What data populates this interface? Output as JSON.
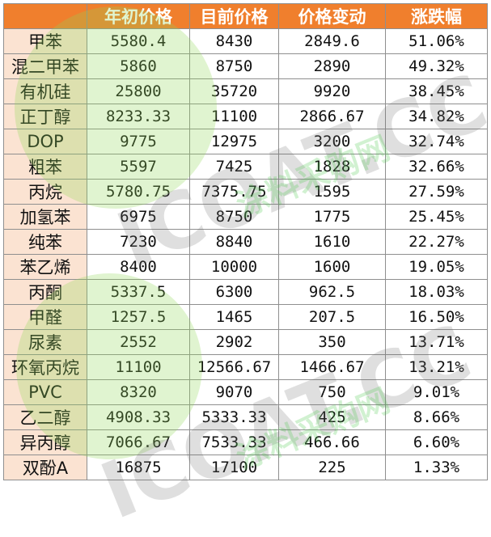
{
  "table": {
    "headers": [
      "",
      "年初价格",
      "目前价格",
      "价格变动",
      "涨跌幅"
    ],
    "rows": [
      [
        "甲苯",
        "5580.4",
        "8430",
        "2849.6",
        "51.06%"
      ],
      [
        "混二甲苯",
        "5860",
        "8750",
        "2890",
        "49.32%"
      ],
      [
        "有机硅",
        "25800",
        "35720",
        "9920",
        "38.45%"
      ],
      [
        "正丁醇",
        "8233.33",
        "11100",
        "2866.67",
        "34.82%"
      ],
      [
        "DOP",
        "9775",
        "12975",
        "3200",
        "32.74%"
      ],
      [
        "粗苯",
        "5597",
        "7425",
        "1828",
        "32.66%"
      ],
      [
        "丙烷",
        "5780.75",
        "7375.75",
        "1595",
        "27.59%"
      ],
      [
        "加氢苯",
        "6975",
        "8750",
        "1775",
        "25.45%"
      ],
      [
        "纯苯",
        "7230",
        "8840",
        "1610",
        "22.27%"
      ],
      [
        "苯乙烯",
        "8400",
        "10000",
        "1600",
        "19.05%"
      ],
      [
        "丙酮",
        "5337.5",
        "6300",
        "962.5",
        "18.03%"
      ],
      [
        "甲醛",
        "1257.5",
        "1465",
        "207.5",
        "16.50%"
      ],
      [
        "尿素",
        "2552",
        "2902",
        "350",
        "13.71%"
      ],
      [
        "环氧丙烷",
        "11100",
        "12566.67",
        "1466.67",
        "13.21%"
      ],
      [
        "PVC",
        "8320",
        "9070",
        "750",
        "9.01%"
      ],
      [
        "乙二醇",
        "4908.33",
        "5333.33",
        "425",
        "8.66%"
      ],
      [
        "异丙醇",
        "7066.67",
        "7533.33",
        "466.66",
        "6.60%"
      ],
      [
        "双酚A",
        "16875",
        "17100",
        "225",
        "1.33%"
      ]
    ]
  },
  "watermark": {
    "brand": "ICOAT.CC",
    "tagline": "涂料采购网",
    "color": "#8fd656"
  }
}
